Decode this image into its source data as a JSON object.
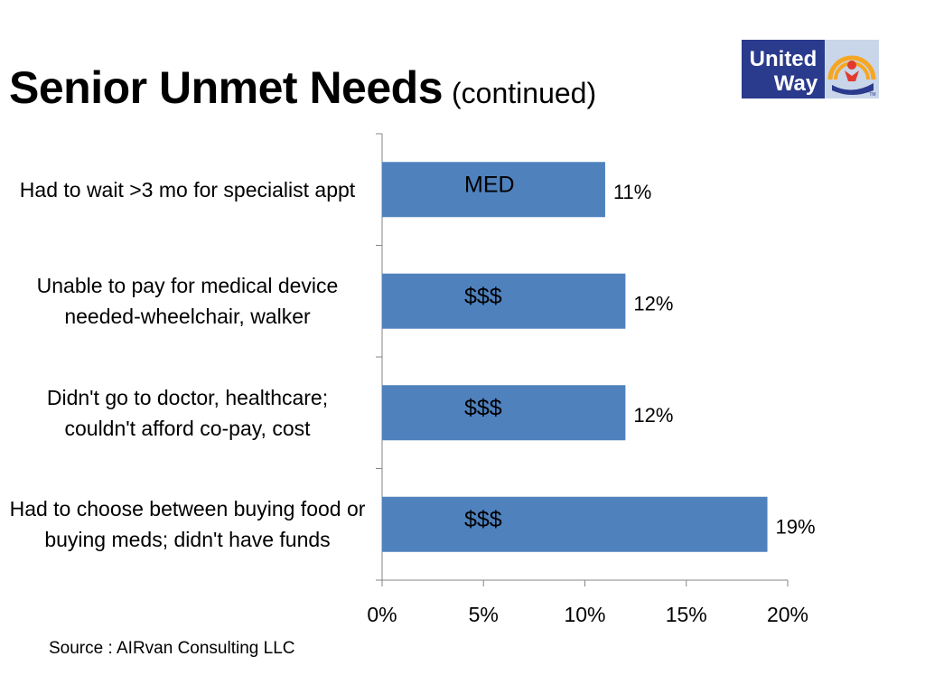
{
  "title": "Senior Unmet Needs",
  "subtitle": "(continued)",
  "logo": {
    "line1": "United",
    "line2": "Way",
    "tm": "TM",
    "colors": {
      "panel": "#2a3a8c",
      "arc": "#f5a623",
      "hand": "#2a3a8c",
      "figure": "#e03a2f"
    }
  },
  "source": "Source : AIRvan Consulting LLC",
  "chart_data": {
    "type": "bar",
    "orientation": "horizontal",
    "categories": [
      "Had to wait >3 mo for specialist appt",
      "Unable to pay for medical device needed-wheelchair, walker",
      "Didn't go to doctor, healthcare; couldn't afford co-pay, cost",
      "Had to choose between buying food or buying meds; didn't have funds"
    ],
    "values": [
      11,
      12,
      12,
      19
    ],
    "value_labels": [
      "11%",
      "12%",
      "12%",
      "19%"
    ],
    "bar_text": [
      "MED",
      "$$$",
      "$$$",
      "$$$"
    ],
    "xlim": [
      0,
      20
    ],
    "xticks": [
      0,
      5,
      10,
      15,
      20
    ],
    "xtick_labels": [
      "0%",
      "5%",
      "10%",
      "15%",
      "20%"
    ],
    "grid": false,
    "bar_color": "#4f81bd"
  }
}
